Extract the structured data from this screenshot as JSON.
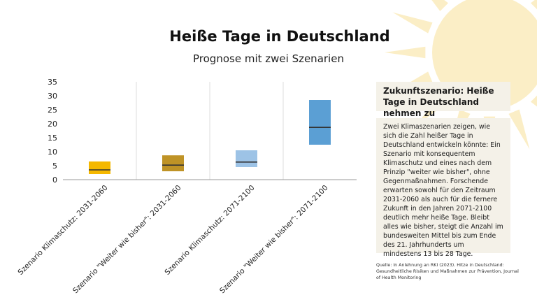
{
  "header": {
    "title": "Heiße Tage in Deutschland",
    "subtitle": "Prognose mit zwei Szenarien"
  },
  "info_box": {
    "title": "Zukunftszenario: Heiße Tage in Deutschland nehmen zu",
    "body": "Zwei Klimaszenarien zeigen, wie sich die Zahl heißer Tage in Deutschland entwickeln könnte: Ein Szenario mit konsequentem Klimaschutz und eines nach dem Prinzip \"weiter wie bisher\", ohne Gegenmaßnahmen. Forschende erwarten sowohl für den Zeitraum 2031-2060 als auch für die fernere Zukunft in den Jahren 2071-2100 deutlich mehr heiße Tage. Bleibt alles wie bisher, steigt die Anzahl im bundesweiten Mittel bis zum Ende des 21. Jahrhunderts um mindestens 13 bis 28 Tage."
  },
  "source": "Quelle: In Anlehnung an RKI (2023). Hitze in Deutschland: Gesundheitliche Risiken und Maßnahmen zur Prävention, Journal of Health Monitoring",
  "colors": {
    "sun": "#fbeec6",
    "grid": "#dddddd",
    "axis": "#999999",
    "median": "#333333"
  },
  "chart_data": {
    "type": "box",
    "title": "",
    "xlabel": "",
    "ylabel": "",
    "ylim": [
      0,
      35
    ],
    "yticks": [
      0,
      5,
      10,
      15,
      20,
      25,
      30,
      35
    ],
    "grid": "vertical",
    "categories": [
      "Szenario Klimaschutz: 2031-2060",
      "Szenario \"Weiter wie bisher\": 2031-2060",
      "Szenario Klimaschutz: 2071-2100",
      "Szenario \"Weiter wie bisher\": 2071-2100"
    ],
    "boxes": [
      {
        "low": 2,
        "median": 3.5,
        "high": 6.5,
        "color": "#f5b800"
      },
      {
        "low": 3,
        "median": 5.2,
        "high": 8.7,
        "color": "#bf9326"
      },
      {
        "low": 4.5,
        "median": 6.3,
        "high": 10.5,
        "color": "#9dc3e6"
      },
      {
        "low": 12.5,
        "median": 18.7,
        "high": 28.5,
        "color": "#5b9fd4"
      }
    ]
  }
}
